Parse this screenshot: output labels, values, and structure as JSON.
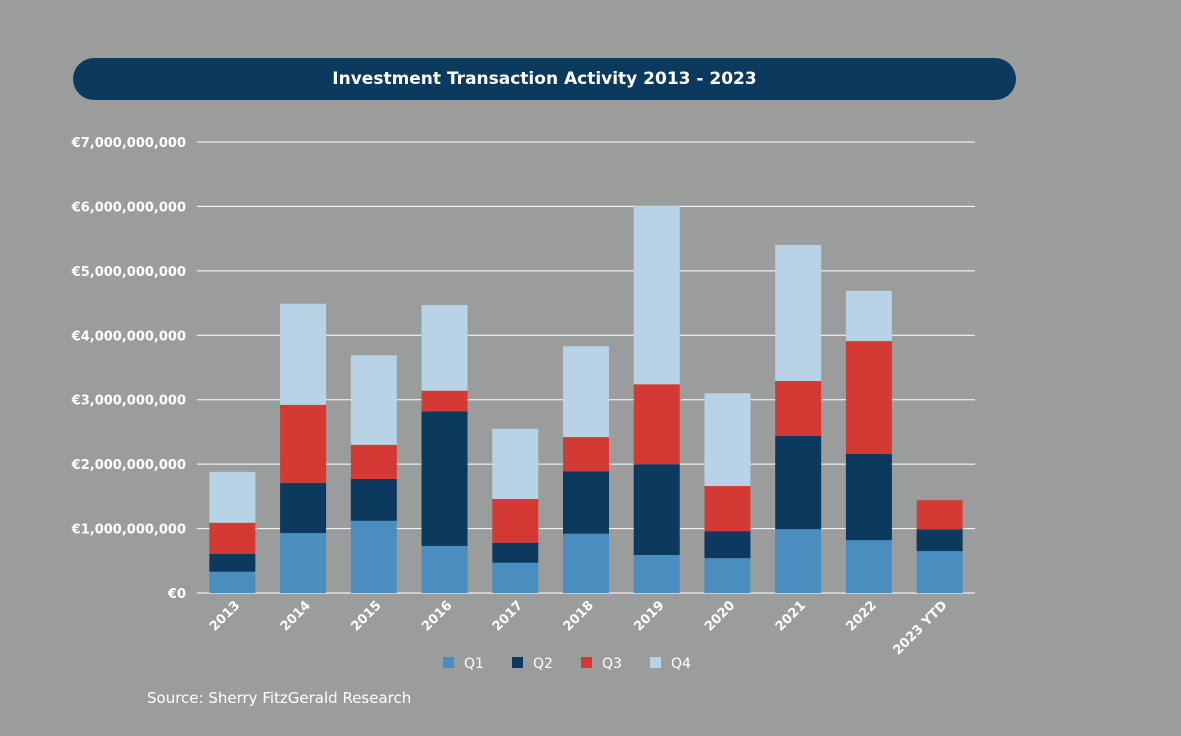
{
  "chart_data": {
    "type": "bar",
    "stacked": true,
    "title": "Investment Transaction Activity 2013 - 2023",
    "categories": [
      "2013",
      "2014",
      "2015",
      "2016",
      "2017",
      "2018",
      "2019",
      "2020",
      "2021",
      "2022",
      "2023 YTD"
    ],
    "series": [
      {
        "name": "Q1",
        "color": "#4a8ec0",
        "values": [
          330000000,
          930000000,
          1120000000,
          730000000,
          470000000,
          920000000,
          590000000,
          540000000,
          990000000,
          820000000,
          650000000
        ]
      },
      {
        "name": "Q2",
        "color": "#0b3a5e",
        "values": [
          280000000,
          780000000,
          650000000,
          2090000000,
          310000000,
          970000000,
          1410000000,
          420000000,
          1450000000,
          1340000000,
          340000000
        ]
      },
      {
        "name": "Q3",
        "color": "#d43a33",
        "values": [
          480000000,
          1210000000,
          530000000,
          320000000,
          680000000,
          530000000,
          1240000000,
          700000000,
          850000000,
          1750000000,
          450000000
        ]
      },
      {
        "name": "Q4",
        "color": "#b8d3e6",
        "values": [
          790000000,
          1570000000,
          1390000000,
          1330000000,
          1090000000,
          1410000000,
          2770000000,
          1440000000,
          2110000000,
          780000000,
          0
        ]
      }
    ],
    "yticks": [
      "€0",
      "€1,000,000,000",
      "€2,000,000,000",
      "€3,000,000,000",
      "€4,000,000,000",
      "€5,000,000,000",
      "€6,000,000,000",
      "€7,000,000,000"
    ],
    "ylim": [
      0,
      7000000000
    ],
    "grid": true,
    "legend": "bottom"
  },
  "source": "Source: Sherry FitzGerald Research"
}
